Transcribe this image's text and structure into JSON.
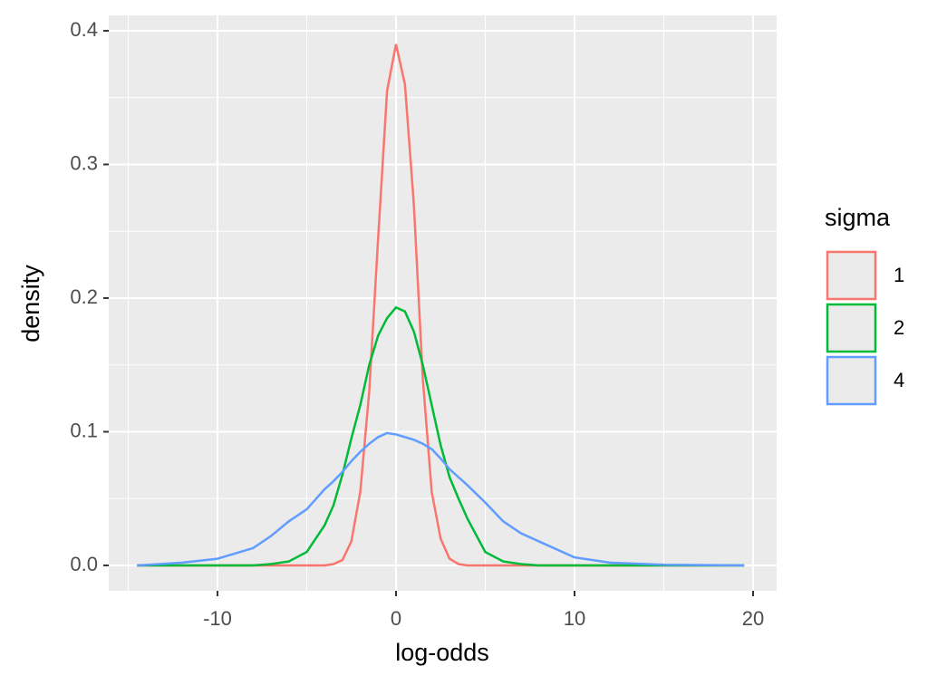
{
  "chart_data": {
    "type": "line",
    "x_label": "log-odds",
    "y_label": "density",
    "x": [
      -14.5,
      -12,
      -10,
      -8,
      -7,
      -6,
      -5,
      -4,
      -3.5,
      -3,
      -2.5,
      -2,
      -1.5,
      -1,
      -0.5,
      0,
      0.5,
      1,
      1.5,
      2,
      2.5,
      3,
      3.5,
      4,
      5,
      6,
      7,
      8,
      10,
      12,
      15,
      19.5
    ],
    "series": [
      {
        "name": "1",
        "color": "#f8766d",
        "values": [
          0,
          0,
          0,
          0,
          0,
          0,
          0,
          0,
          0.001,
          0.004,
          0.018,
          0.055,
          0.13,
          0.245,
          0.355,
          0.39,
          0.36,
          0.27,
          0.14,
          0.055,
          0.02,
          0.005,
          0.001,
          0,
          0,
          0,
          0,
          0,
          0,
          0,
          0,
          0
        ]
      },
      {
        "name": "2",
        "color": "#00ba38",
        "values": [
          0,
          0,
          0,
          0,
          0.001,
          0.003,
          0.01,
          0.03,
          0.045,
          0.068,
          0.095,
          0.12,
          0.15,
          0.172,
          0.185,
          0.193,
          0.19,
          0.175,
          0.15,
          0.12,
          0.09,
          0.066,
          0.05,
          0.035,
          0.01,
          0.003,
          0.001,
          0,
          0,
          0,
          0,
          0
        ]
      },
      {
        "name": "4",
        "color": "#619cff",
        "values": [
          0,
          0.002,
          0.005,
          0.013,
          0.022,
          0.033,
          0.042,
          0.057,
          0.063,
          0.07,
          0.078,
          0.085,
          0.091,
          0.096,
          0.099,
          0.098,
          0.096,
          0.094,
          0.091,
          0.087,
          0.08,
          0.072,
          0.066,
          0.06,
          0.047,
          0.033,
          0.024,
          0.018,
          0.006,
          0.002,
          0.0005,
          0
        ]
      }
    ],
    "legend_title": "sigma",
    "legend_position": "right",
    "xlim": [
      -16.09,
      21.32
    ],
    "ylim": [
      -0.019,
      0.4115
    ],
    "xticks": [
      -10,
      0,
      10,
      20
    ],
    "yticks": [
      {
        "value": 0,
        "label": "0.0"
      },
      0.1,
      0.2,
      0.3,
      0.4
    ],
    "grid": true
  }
}
